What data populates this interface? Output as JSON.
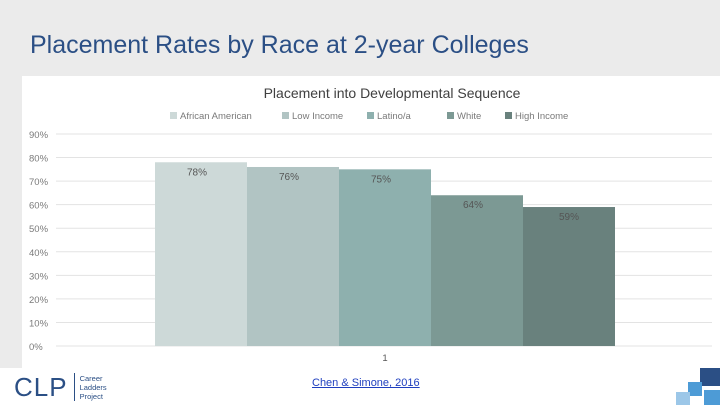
{
  "slide": {
    "title": "Placement Rates by Race at 2-year Colleges"
  },
  "chart_data": {
    "type": "bar",
    "title": "Placement into Developmental Sequence",
    "categories": [
      "1"
    ],
    "series": [
      {
        "name": "African American",
        "values": [
          78
        ],
        "label": "78%",
        "color": "#cdd9d8"
      },
      {
        "name": "Low Income",
        "values": [
          76
        ],
        "label": "76%",
        "color": "#b1c4c3"
      },
      {
        "name": "Latino/a",
        "values": [
          75
        ],
        "label": "75%",
        "color": "#8eb0ae"
      },
      {
        "name": "White",
        "values": [
          64
        ],
        "label": "64%",
        "color": "#7c9994"
      },
      {
        "name": "High Income",
        "values": [
          59
        ],
        "label": "59%",
        "color": "#69817d"
      }
    ],
    "ylim": [
      0,
      90
    ],
    "yticks": [
      "0%",
      "10%",
      "20%",
      "30%",
      "40%",
      "50%",
      "60%",
      "70%",
      "80%",
      "90%"
    ],
    "grid": true,
    "legend_position": "top"
  },
  "footer": {
    "logo_letters": "CLP",
    "logo_line1": "Career",
    "logo_line2": "Ladders",
    "logo_line3": "Project",
    "citation": "Chen & Simone, 2016"
  },
  "colors": {
    "title": "#2b4f85",
    "citation_link": "#1f3fbf",
    "deco_1": "#2b4f85",
    "deco_2": "#4d9bd6",
    "deco_3": "#9cc7e8"
  }
}
